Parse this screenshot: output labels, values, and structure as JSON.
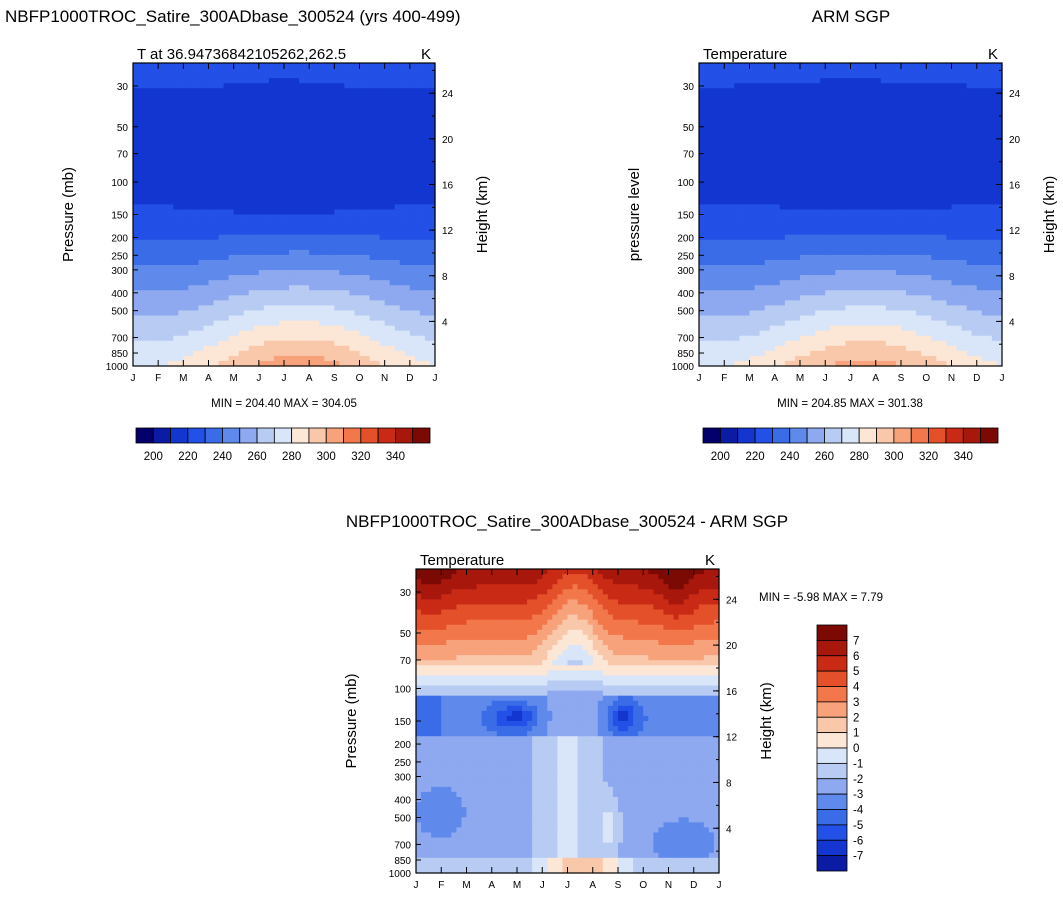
{
  "chart_data": [
    {
      "type": "heatmap",
      "title": "NBFP1000TROC_Satire_300ADbase_300524 (yrs 400-499)",
      "subtitle_left": "T at 36.94736842105262,262.5",
      "subtitle_right": "K",
      "ylabel": "Pressure (mb)",
      "ylabel_right": "Height (km)",
      "x_ticks": [
        "J",
        "F",
        "M",
        "A",
        "M",
        "J",
        "J",
        "A",
        "S",
        "O",
        "N",
        "D",
        "J"
      ],
      "y_ticks": [
        "30",
        "50",
        "70",
        "100",
        "150",
        "200",
        "250",
        "300",
        "400",
        "500",
        "700",
        "850",
        "1000"
      ],
      "y_right_ticks": [
        "24",
        "20",
        "16",
        "12",
        "8",
        "4"
      ],
      "stats": "MIN = 204.40 MAX = 304.05",
      "colorbar_labels": [
        "200",
        "220",
        "240",
        "260",
        "280",
        "300",
        "320",
        "340"
      ],
      "z_levels_min": 204.4,
      "z_levels_max": 304.05
    },
    {
      "type": "heatmap",
      "title": "ARM SGP",
      "subtitle_left": "Temperature",
      "subtitle_right": "K",
      "ylabel": "pressure level",
      "ylabel_right": "Height (km)",
      "x_ticks": [
        "J",
        "F",
        "M",
        "A",
        "M",
        "J",
        "J",
        "A",
        "S",
        "O",
        "N",
        "D",
        "J"
      ],
      "y_ticks": [
        "30",
        "50",
        "70",
        "100",
        "150",
        "200",
        "250",
        "300",
        "400",
        "500",
        "700",
        "850",
        "1000"
      ],
      "y_right_ticks": [
        "24",
        "20",
        "16",
        "12",
        "8",
        "4"
      ],
      "stats": "MIN = 204.85 MAX = 301.38",
      "colorbar_labels": [
        "200",
        "220",
        "240",
        "260",
        "280",
        "300",
        "320",
        "340"
      ],
      "z_levels_min": 204.85,
      "z_levels_max": 301.38
    },
    {
      "type": "heatmap",
      "title": "NBFP1000TROC_Satire_300ADbase_300524 - ARM SGP",
      "subtitle_left": "Temperature",
      "subtitle_right": "K",
      "ylabel": "Pressure (mb)",
      "ylabel_right": "Height (km)",
      "x_ticks": [
        "J",
        "F",
        "M",
        "A",
        "M",
        "J",
        "J",
        "A",
        "S",
        "O",
        "N",
        "D",
        "J"
      ],
      "y_ticks": [
        "30",
        "50",
        "70",
        "100",
        "150",
        "200",
        "250",
        "300",
        "400",
        "500",
        "700",
        "850",
        "1000"
      ],
      "y_right_ticks": [
        "24",
        "20",
        "16",
        "12",
        "8",
        "4"
      ],
      "stats": "MIN =  -5.98 MAX =   7.79",
      "colorbar_labels": [
        "7",
        "6",
        "5",
        "4",
        "3",
        "2",
        "1",
        "0",
        "-1",
        "-2",
        "-3",
        "-4",
        "-5",
        "-6",
        "-7"
      ],
      "z_levels_min": -5.98,
      "z_levels_max": 7.79
    }
  ],
  "colors": {
    "palette": [
      "#03006b",
      "#0b1ba3",
      "#1336d0",
      "#2350e6",
      "#3b6ce8",
      "#5f8aec",
      "#8ea9ef",
      "#b7cbf3",
      "#d9e5f8",
      "#fce6d6",
      "#f9c7aa",
      "#f7a27b",
      "#f2774b",
      "#e4502a",
      "#c92a15",
      "#a8170c",
      "#7c0a04"
    ]
  }
}
